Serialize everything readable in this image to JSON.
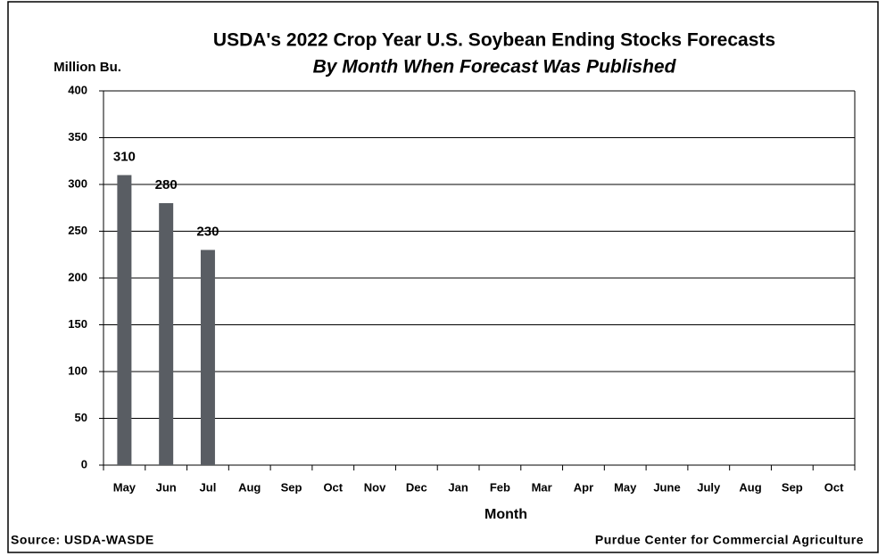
{
  "chart_data": {
    "type": "bar",
    "title": "USDA's 2022 Crop Year U.S. Soybean Ending Stocks Forecasts",
    "subtitle": "By Month When Forecast Was Published",
    "y_label": "Million Bu.",
    "x_label": "Month",
    "source": "Source: USDA-WASDE",
    "credit": "Purdue Center for Commercial Agriculture",
    "categories": [
      "May",
      "Jun",
      "Jul",
      "Aug",
      "Sep",
      "Oct",
      "Nov",
      "Dec",
      "Jan",
      "Feb",
      "Mar",
      "Apr",
      "May",
      "June",
      "July",
      "Aug",
      "Sep",
      "Oct"
    ],
    "values": [
      310,
      280,
      230,
      null,
      null,
      null,
      null,
      null,
      null,
      null,
      null,
      null,
      null,
      null,
      null,
      null,
      null,
      null
    ],
    "color": "#595d63",
    "ylim": [
      0,
      400
    ],
    "yticks": [
      0,
      50,
      100,
      150,
      200,
      250,
      300,
      350,
      400
    ],
    "grid": true
  }
}
